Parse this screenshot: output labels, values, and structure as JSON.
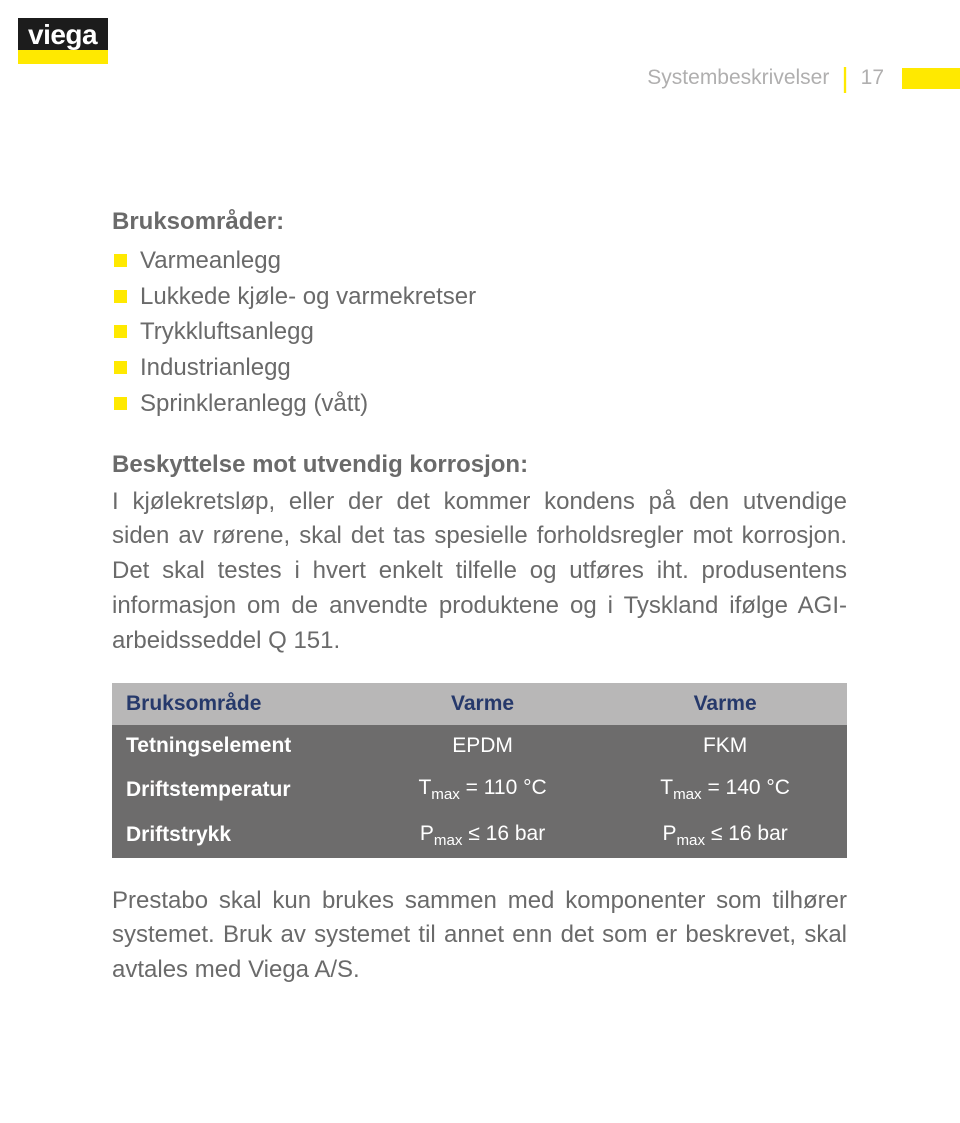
{
  "logo_text": "viega",
  "header": {
    "label": "Systembeskrivelser",
    "pagenum": "17"
  },
  "section_title": "Bruksområder:",
  "bullets": [
    "Varmeanlegg",
    "Lukkede kjøle- og varmekretser",
    "Trykkluftsanlegg",
    "Industrianlegg",
    "Sprinkleranlegg (vått)"
  ],
  "para_title": "Beskyttelse mot utvendig korrosjon:",
  "para_body": "I kjølekretsløp, eller der det kommer kondens på den utvendige siden av rørene, skal det tas spesielle forholdsregler mot korrosjon. Det skal testes i hvert enkelt tilfelle og utføres iht. produsentens informasjon om de anvendte produktene og i Tyskland ifølge AGI-arbeidsseddel Q 151.",
  "table": {
    "head": {
      "c0": "Bruksområde",
      "c1": "Varme",
      "c2": "Varme"
    },
    "rows": [
      {
        "c0": "Tetningselement",
        "c1": "EPDM",
        "c2": "FKM"
      },
      {
        "c0": "Driftstemperatur",
        "c1_pre": "T",
        "c1_sub": "max",
        "c1_post": " = 110 °C",
        "c2_pre": "T",
        "c2_sub": "max",
        "c2_post": " = 140 °C"
      },
      {
        "c0": "Driftstrykk",
        "c1_pre": "P",
        "c1_sub": "max",
        "c1_post": " ≤ 16 bar",
        "c2_pre": "P",
        "c2_sub": "max",
        "c2_post": " ≤ 16 bar"
      }
    ]
  },
  "footer": "Prestabo skal kun brukes sammen med komponenter som tilhører systemet. Bruk av systemet til annet enn det som er beskrevet, skal avtales med Viega A/S."
}
